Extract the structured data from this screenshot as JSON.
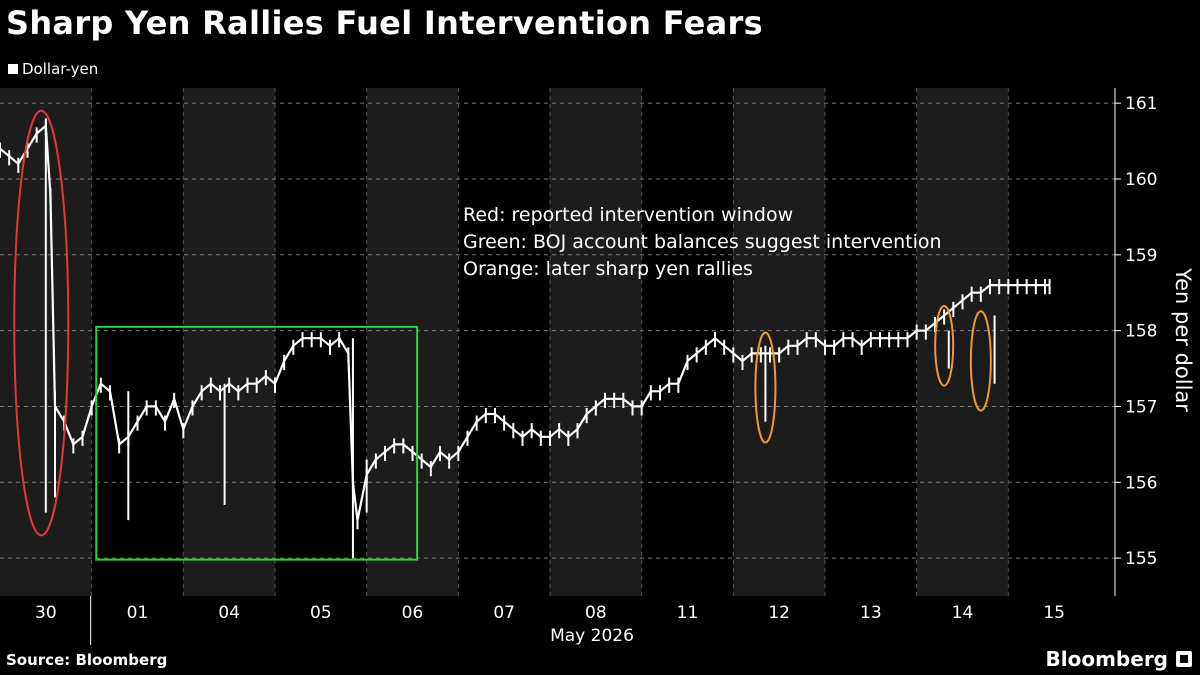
{
  "page": {
    "title": "Sharp Yen Rallies Fuel Intervention Fears",
    "source": "Source: Bloomberg",
    "brand": "Bloomberg",
    "background": "#000000"
  },
  "chart_data": {
    "type": "line",
    "title": "Sharp Yen Rallies Fuel Intervention Fears",
    "ylabel": "Yen per dollar",
    "xlabel": "May 2026",
    "ylim": [
      154.5,
      161.2
    ],
    "yticks": [
      155,
      156,
      157,
      158,
      159,
      160,
      161
    ],
    "categories": [
      "30",
      "01",
      "04",
      "05",
      "06",
      "07",
      "08",
      "11",
      "12",
      "13",
      "14",
      "15"
    ],
    "month_label": "May 2026",
    "legend": [
      {
        "name": "Dollar-yen",
        "color": "#ffffff"
      }
    ],
    "annotations": [
      "Red: reported intervention window",
      "Green: BOJ account balances suggest intervention",
      "Orange: later sharp yen rallies"
    ],
    "highlight_colors": {
      "red": "#e8353b",
      "green": "#2bd62b",
      "orange": "#f29b2a"
    },
    "shaded_days": [
      "30",
      "04",
      "06",
      "08",
      "12",
      "14"
    ],
    "series": [
      {
        "name": "Dollar-yen",
        "color": "#ffffff",
        "x": [
          0.0,
          0.1,
          0.2,
          0.3,
          0.4,
          0.5,
          0.55,
          0.6,
          0.7,
          0.8,
          0.9,
          1.0,
          1.1,
          1.2,
          1.3,
          1.4,
          1.5,
          1.6,
          1.7,
          1.8,
          1.9,
          2.0,
          2.1,
          2.2,
          2.3,
          2.4,
          2.5,
          2.6,
          2.7,
          2.8,
          2.9,
          3.0,
          3.1,
          3.2,
          3.3,
          3.4,
          3.5,
          3.6,
          3.7,
          3.8,
          3.85,
          3.9,
          4.0,
          4.1,
          4.2,
          4.3,
          4.4,
          4.5,
          4.6,
          4.7,
          4.8,
          4.9,
          5.0,
          5.1,
          5.2,
          5.3,
          5.4,
          5.5,
          5.6,
          5.7,
          5.8,
          5.9,
          6.0,
          6.1,
          6.2,
          6.3,
          6.4,
          6.5,
          6.6,
          6.7,
          6.8,
          6.9,
          7.0,
          7.1,
          7.2,
          7.3,
          7.4,
          7.5,
          7.6,
          7.7,
          7.8,
          7.9,
          8.0,
          8.1,
          8.2,
          8.3,
          8.4,
          8.5,
          8.6,
          8.7,
          8.8,
          8.9,
          9.0,
          9.1,
          9.2,
          9.3,
          9.4,
          9.5,
          9.6,
          9.7,
          9.8,
          9.9,
          10.0,
          10.1,
          10.2,
          10.3,
          10.4,
          10.5,
          10.6,
          10.7,
          10.8,
          10.9,
          11.0,
          11.1,
          11.2,
          11.3,
          11.4,
          11.45
        ],
        "values": [
          160.4,
          160.3,
          160.2,
          160.4,
          160.6,
          160.7,
          159.8,
          157.0,
          156.8,
          156.5,
          156.6,
          157.0,
          157.3,
          157.2,
          156.5,
          156.6,
          156.8,
          157.0,
          157.0,
          156.8,
          157.1,
          156.7,
          157.0,
          157.2,
          157.3,
          157.2,
          157.3,
          157.2,
          157.3,
          157.3,
          157.4,
          157.3,
          157.6,
          157.8,
          157.9,
          157.9,
          157.9,
          157.8,
          157.9,
          157.7,
          156.0,
          155.5,
          156.1,
          156.3,
          156.4,
          156.5,
          156.5,
          156.4,
          156.3,
          156.2,
          156.4,
          156.3,
          156.4,
          156.6,
          156.8,
          156.9,
          156.9,
          156.8,
          156.7,
          156.6,
          156.7,
          156.6,
          156.6,
          156.7,
          156.6,
          156.7,
          156.9,
          157.0,
          157.1,
          157.1,
          157.1,
          157.0,
          157.0,
          157.2,
          157.2,
          157.3,
          157.3,
          157.6,
          157.7,
          157.8,
          157.9,
          157.8,
          157.7,
          157.6,
          157.7,
          157.7,
          157.7,
          157.7,
          157.8,
          157.8,
          157.9,
          157.9,
          157.8,
          157.8,
          157.9,
          157.9,
          157.8,
          157.9,
          157.9,
          157.9,
          157.9,
          157.9,
          158.0,
          158.0,
          158.1,
          158.2,
          158.3,
          158.4,
          158.5,
          158.5,
          158.6,
          158.6,
          158.6,
          158.6,
          158.6,
          158.6,
          158.6,
          158.6
        ],
        "spikes": [
          {
            "x": 0.5,
            "low": 155.6,
            "high": 160.8
          },
          {
            "x": 0.6,
            "low": 155.8,
            "high": 157.2
          },
          {
            "x": 1.4,
            "low": 155.5,
            "high": 157.2
          },
          {
            "x": 2.45,
            "low": 155.7,
            "high": 157.3
          },
          {
            "x": 3.85,
            "low": 155.0,
            "high": 157.9
          },
          {
            "x": 4.0,
            "low": 155.6,
            "high": 156.3
          },
          {
            "x": 8.35,
            "low": 156.8,
            "high": 157.8
          },
          {
            "x": 10.35,
            "low": 157.5,
            "high": 158.0
          },
          {
            "x": 10.85,
            "low": 157.3,
            "high": 158.2
          }
        ]
      }
    ]
  }
}
